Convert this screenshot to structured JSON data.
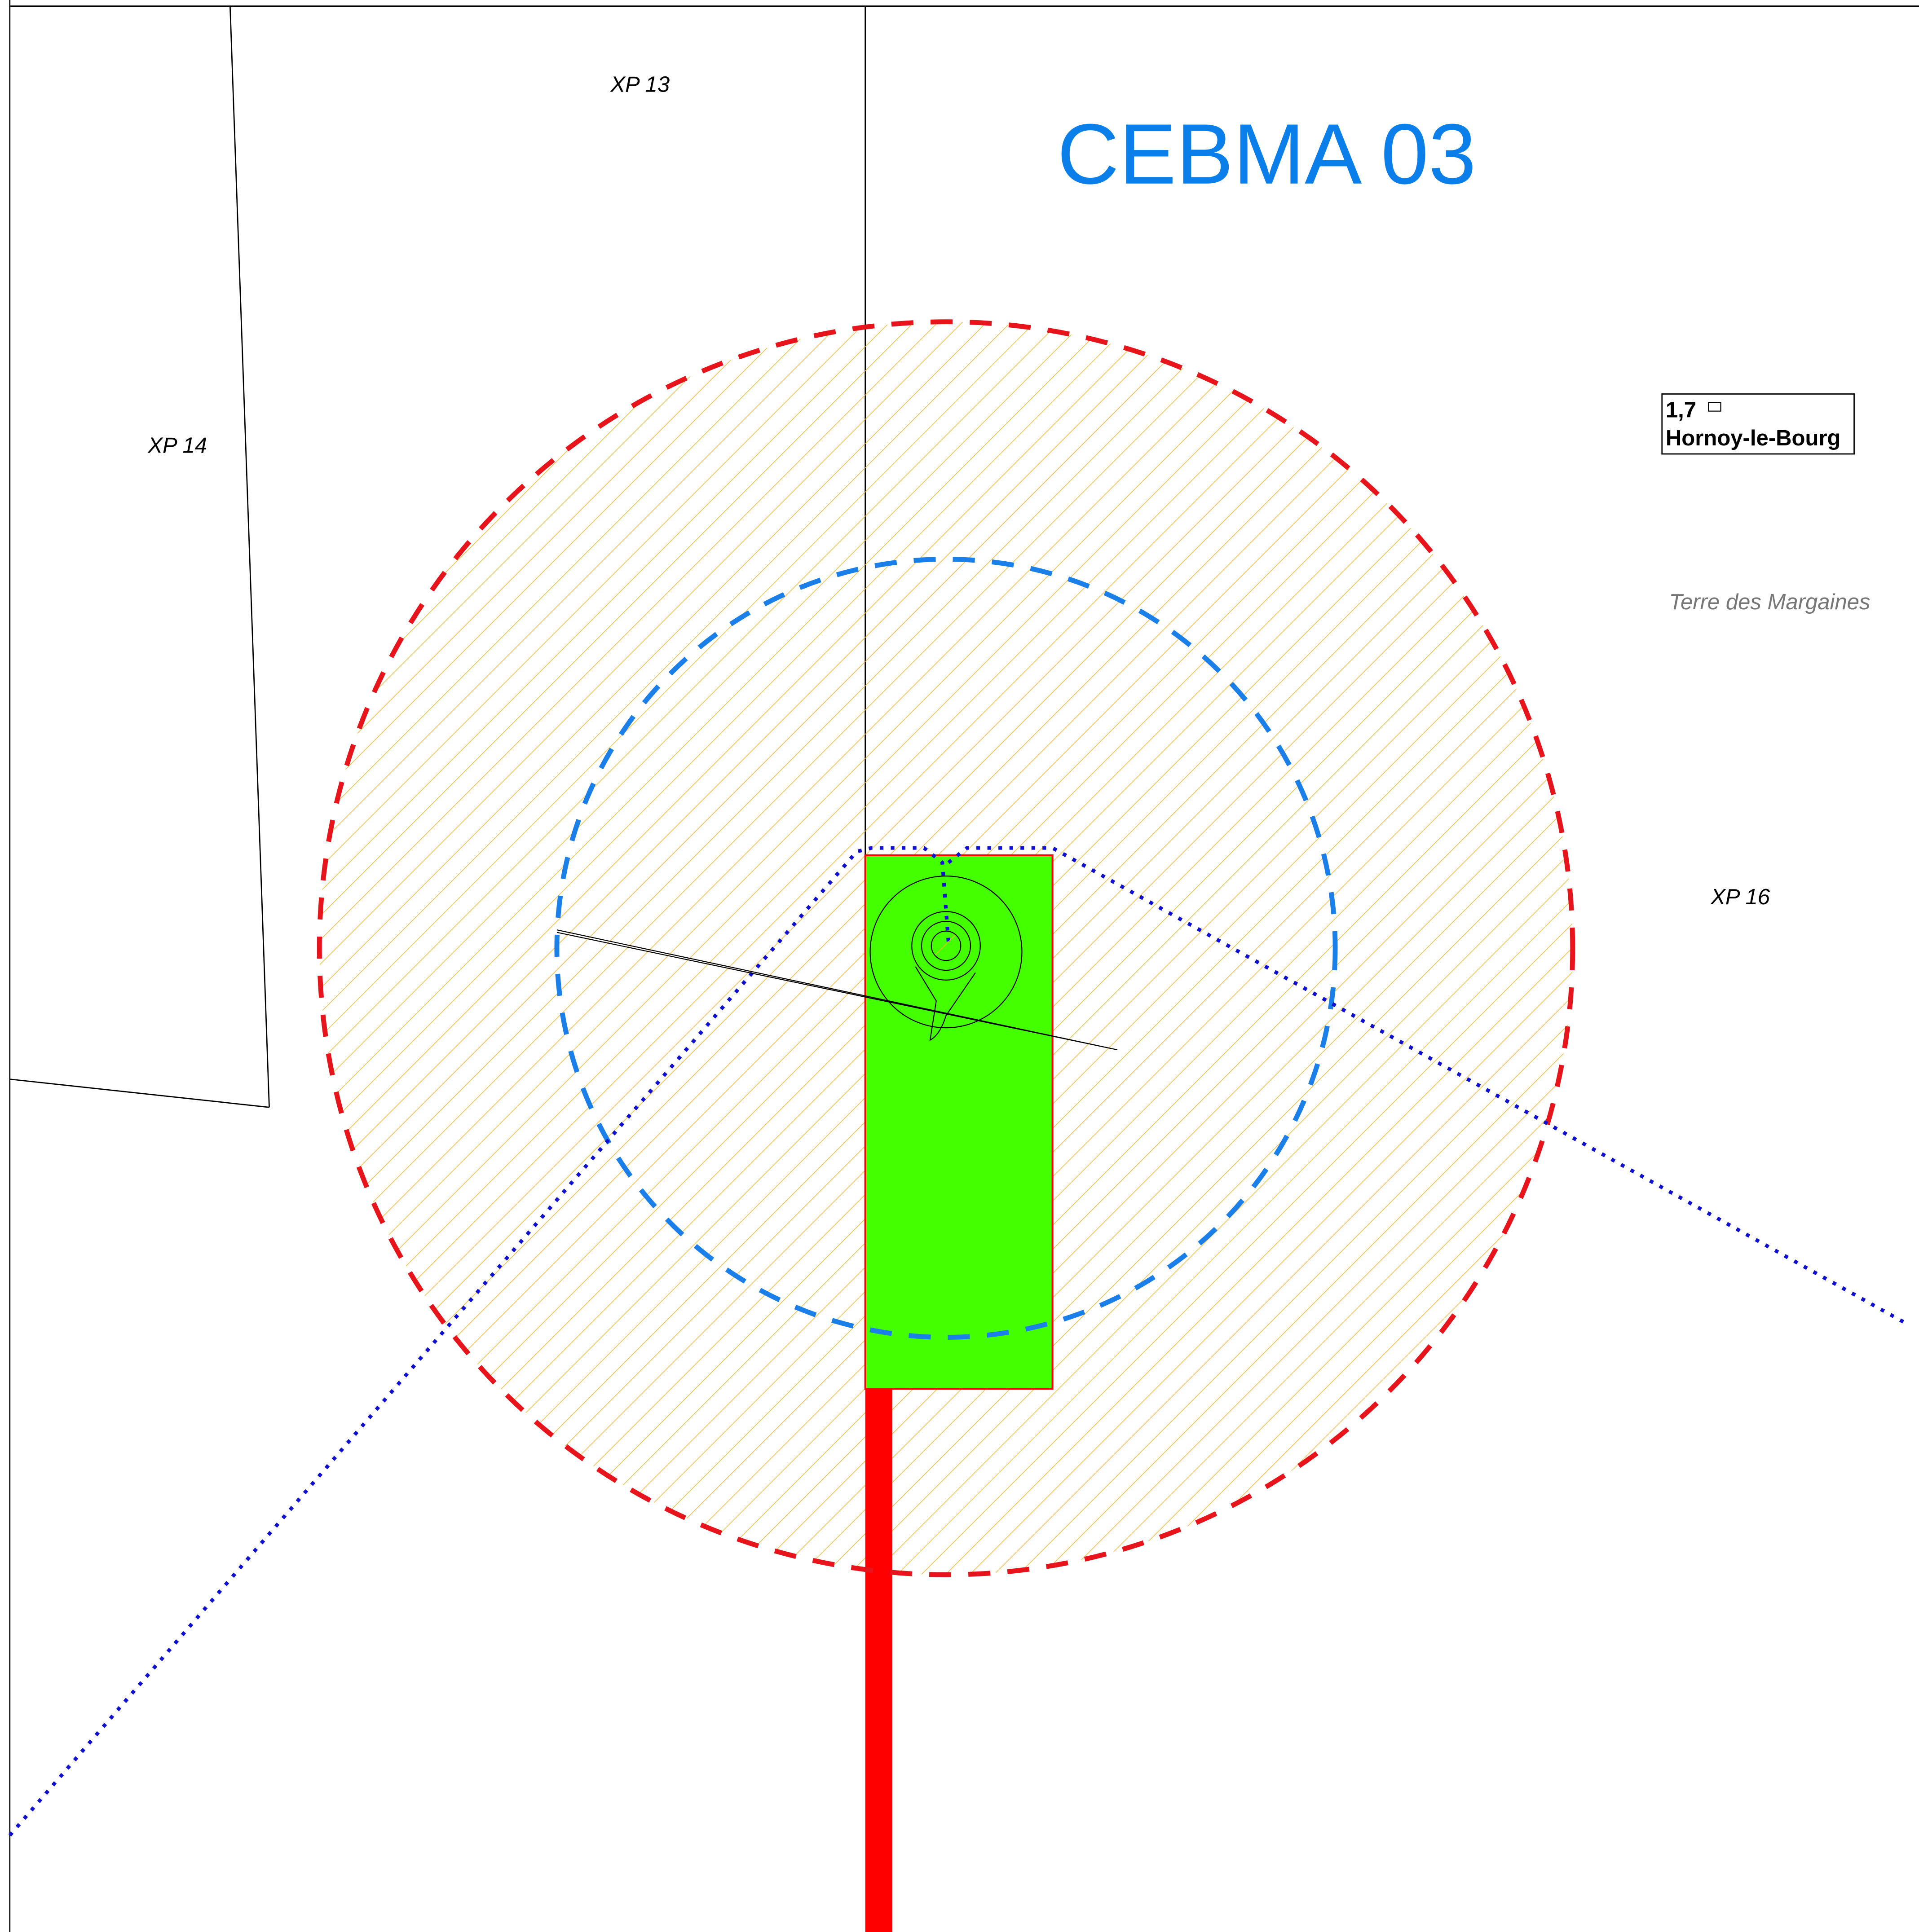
{
  "title": "CEBMA 03",
  "parcels": [
    {
      "label": "XP 13"
    },
    {
      "label": "XP 14"
    },
    {
      "label": "XP 16"
    }
  ],
  "label_box": {
    "value": "1,7",
    "place": "Hornoy-le-Bourg"
  },
  "locality": "Terre des Margaines"
}
